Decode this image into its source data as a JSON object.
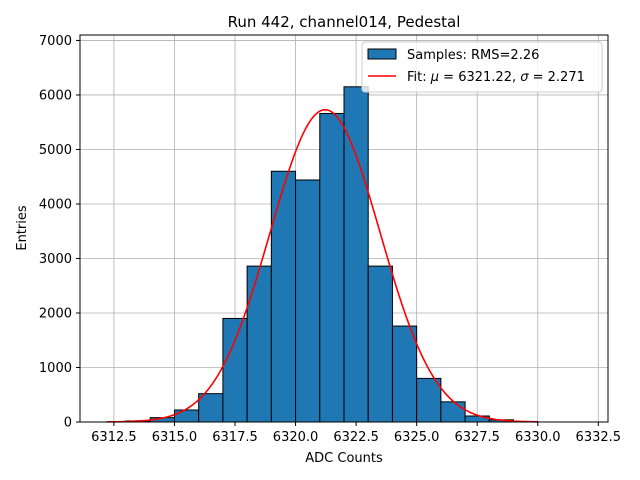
{
  "chart_data": {
    "type": "bar",
    "title": "Run 442, channel014, Pedestal",
    "xlabel": "ADC Counts",
    "ylabel": "Entries",
    "xlim": [
      6311.1,
      6332.9
    ],
    "ylim": [
      0,
      7100
    ],
    "x_ticks": [
      6312.5,
      6315.0,
      6317.5,
      6320.0,
      6322.5,
      6325.0,
      6327.5,
      6330.0,
      6332.5
    ],
    "x_tick_labels": [
      "6312.5",
      "6315.0",
      "6317.5",
      "6320.0",
      "6322.5",
      "6325.0",
      "6327.5",
      "6330.0",
      "6332.5"
    ],
    "y_ticks": [
      0,
      1000,
      2000,
      3000,
      4000,
      5000,
      6000,
      7000
    ],
    "y_tick_labels": [
      "0",
      "1000",
      "2000",
      "3000",
      "4000",
      "5000",
      "6000",
      "7000"
    ],
    "grid": true,
    "legend_position": "top-right",
    "colors": {
      "bar_fill": "#1f77b4",
      "bar_edge": "#000000",
      "fit_line": "#ff0000",
      "grid": "#b0b0b0"
    },
    "histogram": {
      "name": "Samples: RMS=2.26",
      "bin_width": 1,
      "bin_edges_start": 6312,
      "counts": [
        0,
        20,
        80,
        220,
        520,
        1900,
        2860,
        4600,
        4440,
        5660,
        6150,
        2860,
        1760,
        800,
        370,
        110,
        40,
        10,
        0,
        0
      ]
    },
    "fit": {
      "name_prefix": "Fit: ",
      "mu_symbol": "μ",
      "mu_text": " = 6321.22, ",
      "sigma_symbol": "σ",
      "sigma_text": " = 2.271",
      "mu": 6321.22,
      "sigma": 2.271,
      "amplitude": 5730,
      "x_range": [
        6312.2,
        6330.0
      ]
    }
  }
}
